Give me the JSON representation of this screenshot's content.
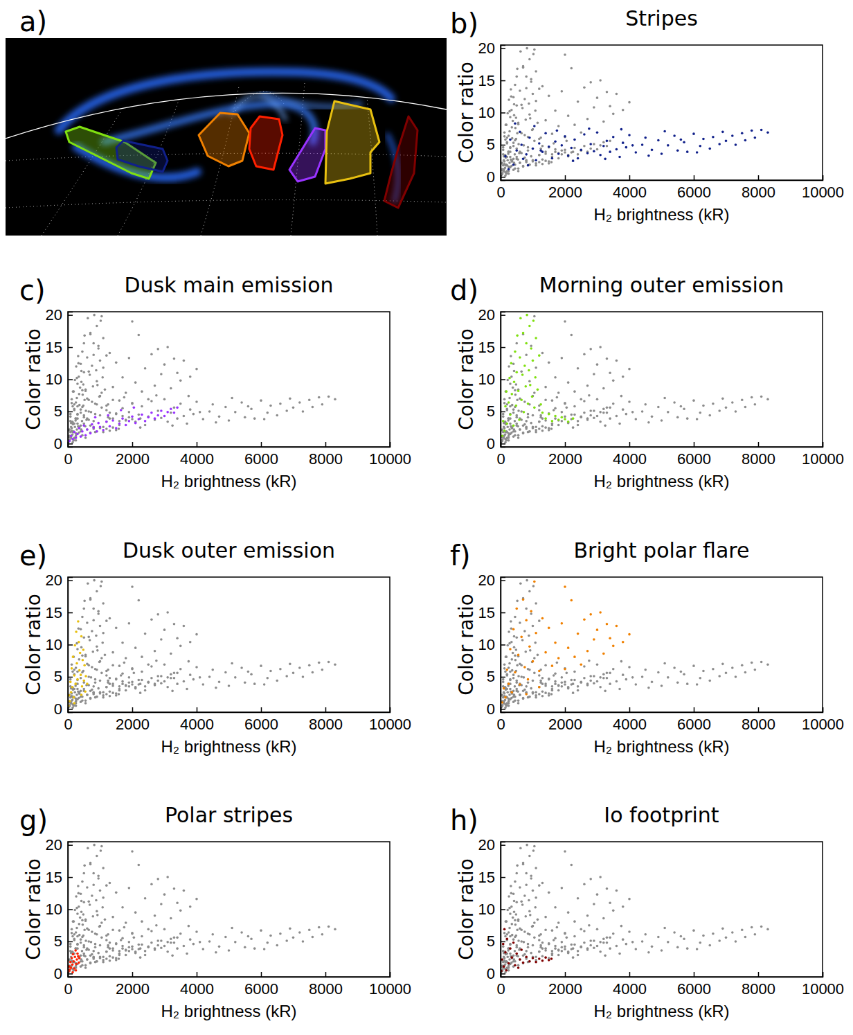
{
  "image_panel": {
    "panel_label": "a)"
  },
  "chart_data": [
    {
      "type": "scatter",
      "panel_label": "b)",
      "title": "Stripes",
      "xlabel": "H₂ brightness (kR)",
      "ylabel": "Color ratio",
      "xlim": [
        0,
        10000
      ],
      "ylim": [
        -0.5,
        20.5
      ],
      "xticks": [
        0,
        2000,
        4000,
        6000,
        8000,
        10000
      ],
      "yticks": [
        0,
        5,
        10,
        15,
        20
      ],
      "marker": "circle",
      "series": [
        {
          "color": "#10208a",
          "x": [
            150,
            300,
            400,
            500,
            600,
            700,
            800,
            900,
            1000,
            1100,
            1200,
            1300,
            1400,
            1500,
            1600,
            1700,
            1800,
            1900,
            2000,
            2100,
            2200,
            2300,
            2400,
            2500,
            2600,
            2700,
            2800,
            2900,
            3000,
            3100,
            3200,
            3300,
            3400,
            3500,
            3600,
            3700,
            3800,
            3900,
            4000,
            4200,
            4400,
            4500,
            4700,
            4900,
            5000,
            5200,
            5400,
            5500,
            5700,
            5800,
            6000,
            6200,
            6300,
            6500,
            6600,
            6800,
            6900,
            7000,
            7200,
            7300,
            7500,
            7600,
            7800,
            7900,
            8100,
            8300,
            250,
            450,
            650,
            850,
            1050,
            1250,
            1750,
            2250,
            2750,
            3250,
            3750,
            4100,
            4600,
            5100,
            5600,
            6100
          ],
          "values": [
            3.2,
            5.8,
            1.9,
            4.1,
            7.0,
            2.8,
            3.5,
            6.1,
            4.4,
            2.6,
            5.2,
            3.9,
            6.8,
            4.7,
            2.9,
            5.5,
            3.6,
            4.9,
            6.3,
            3.3,
            4.5,
            5.8,
            2.9,
            4.2,
            6.6,
            3.7,
            5.1,
            4.0,
            6.9,
            3.4,
            4.8,
            5.6,
            3.9,
            6.2,
            4.3,
            3.1,
            5.3,
            4.6,
            6.5,
            3.8,
            5.0,
            6.1,
            4.2,
            5.7,
            3.6,
            4.9,
            6.4,
            4.1,
            5.4,
            3.9,
            6.7,
            4.8,
            5.9,
            4.4,
            6.2,
            5.1,
            7.0,
            5.6,
            6.4,
            5.0,
            6.8,
            5.7,
            7.2,
            6.1,
            7.3,
            6.9,
            1.2,
            8.3,
            5.0,
            1.8,
            7.9,
            4.1,
            7.2,
            2.5,
            7.5,
            2.8,
            7.4,
            4.9,
            3.3,
            7.1,
            5.8,
            3.8
          ]
        }
      ]
    },
    {
      "type": "scatter",
      "panel_label": "c)",
      "title": "Dusk main emission",
      "xlabel": "H₂ brightness (kR)",
      "ylabel": "Color ratio",
      "xlim": [
        0,
        10000
      ],
      "ylim": [
        -0.5,
        20.5
      ],
      "xticks": [
        0,
        2000,
        4000,
        6000,
        8000,
        10000
      ],
      "yticks": [
        0,
        5,
        10,
        15,
        20
      ],
      "marker": "circle",
      "series": [
        {
          "color": "#9933ff",
          "x": [
            50,
            100,
            150,
            200,
            250,
            300,
            350,
            400,
            450,
            500,
            550,
            600,
            700,
            750,
            800,
            900,
            950,
            1000,
            1100,
            1200,
            1300,
            1400,
            1500,
            1600,
            1700,
            1800,
            1900,
            2000,
            2100,
            2200,
            2300,
            2400,
            2500,
            2600,
            2700,
            2800,
            2900,
            3000,
            3100,
            3200,
            3300,
            3400,
            1250,
            850,
            1650,
            2050
          ],
          "values": [
            0.4,
            1.2,
            0.7,
            1.8,
            0.9,
            1.5,
            2.4,
            1.1,
            1.9,
            2.8,
            1.3,
            2.2,
            1.6,
            3.0,
            2.5,
            1.9,
            3.2,
            2.6,
            2.1,
            3.4,
            2.7,
            3.6,
            2.4,
            3.1,
            3.9,
            2.9,
            3.5,
            4.2,
            3.2,
            3.8,
            4.5,
            3.5,
            4.1,
            4.8,
            3.9,
            4.4,
            5.1,
            4.3,
            4.9,
            5.4,
            4.8,
            5.6,
            4.4,
            4.1,
            5.2,
            5.6
          ]
        }
      ]
    },
    {
      "type": "scatter",
      "panel_label": "d)",
      "title": "Morning outer emission",
      "xlabel": "H₂ brightness (kR)",
      "ylabel": "Color ratio",
      "xlim": [
        0,
        10000
      ],
      "ylim": [
        -0.5,
        20.5
      ],
      "xticks": [
        0,
        2000,
        4000,
        6000,
        8000,
        10000
      ],
      "yticks": [
        0,
        5,
        10,
        15,
        20
      ],
      "marker": "circle",
      "series": [
        {
          "color": "#80e010",
          "x": [
            50,
            80,
            120,
            150,
            180,
            200,
            250,
            280,
            300,
            330,
            350,
            400,
            420,
            450,
            480,
            500,
            520,
            550,
            580,
            600,
            620,
            650,
            680,
            700,
            720,
            750,
            780,
            800,
            820,
            850,
            880,
            900,
            920,
            950,
            980,
            1000,
            1020,
            1050,
            1080,
            1100,
            1150,
            1200,
            1250,
            1300,
            1400,
            1500,
            1600,
            1700,
            1800,
            1900,
            2000,
            2100,
            2250
          ],
          "values": [
            1.2,
            3.5,
            2.0,
            5.8,
            8.1,
            3.1,
            6.4,
            10.2,
            4.5,
            12.5,
            7.7,
            2.8,
            9.6,
            14.3,
            5.9,
            11.1,
            16.8,
            8.2,
            3.7,
            13.4,
            19.5,
            6.8,
            10.7,
            17.2,
            4.9,
            12.1,
            8.9,
            15.6,
            20.0,
            6.2,
            11.4,
            18.3,
            9.1,
            14.8,
            7.3,
            12.9,
            19.1,
            5.6,
            10.3,
            16.4,
            8.4,
            13.7,
            6.1,
            4.8,
            3.9,
            4.6,
            3.5,
            4.3,
            3.7,
            4.1,
            3.8,
            3.4,
            3.9
          ]
        }
      ]
    },
    {
      "type": "scatter",
      "panel_label": "e)",
      "title": "Dusk outer emission",
      "xlabel": "H₂ brightness (kR)",
      "ylabel": "Color ratio",
      "xlim": [
        0,
        10000
      ],
      "ylim": [
        -0.5,
        20.5
      ],
      "xticks": [
        0,
        2000,
        4000,
        6000,
        8000,
        10000
      ],
      "yticks": [
        0,
        5,
        10,
        15,
        20
      ],
      "marker": "circle",
      "series": [
        {
          "color": "#e8c010",
          "x": [
            20,
            40,
            60,
            80,
            100,
            120,
            140,
            160,
            180,
            200,
            220,
            240,
            260,
            280,
            300,
            320,
            340,
            360,
            380,
            400,
            420,
            440,
            460,
            480,
            500,
            520,
            540,
            560,
            600,
            420,
            200
          ],
          "values": [
            0.5,
            2.1,
            1.2,
            4.2,
            2.6,
            6.3,
            3.4,
            8.1,
            1.8,
            5.2,
            9.9,
            3.9,
            12.0,
            7.1,
            4.6,
            13.6,
            10.4,
            6.0,
            8.7,
            5.3,
            11.3,
            3.5,
            7.6,
            9.2,
            4.4,
            6.8,
            2.7,
            5.1,
            3.9,
            2.2,
            0.9
          ]
        }
      ]
    },
    {
      "type": "scatter",
      "panel_label": "f)",
      "title": "Bright polar flare",
      "xlabel": "H₂ brightness (kR)",
      "ylabel": "Color ratio",
      "xlim": [
        0,
        10000
      ],
      "ylim": [
        -0.5,
        20.5
      ],
      "xticks": [
        0,
        2000,
        4000,
        6000,
        8000,
        10000
      ],
      "yticks": [
        0,
        5,
        10,
        15,
        20
      ],
      "marker": "circle",
      "series": [
        {
          "color": "#f08000",
          "x": [
            50,
            100,
            150,
            200,
            250,
            300,
            350,
            400,
            450,
            500,
            550,
            600,
            650,
            700,
            750,
            800,
            850,
            900,
            950,
            1000,
            1100,
            1200,
            1300,
            1400,
            1500,
            1600,
            1700,
            1800,
            1900,
            2000,
            2100,
            2200,
            2300,
            2400,
            2500,
            2600,
            2700,
            2800,
            2900,
            3000,
            3100,
            3200,
            3300,
            3400,
            3500,
            3600,
            3800,
            4000,
            2000,
            1050,
            800,
            1200
          ],
          "values": [
            1.0,
            3.2,
            1.8,
            6.1,
            3.9,
            9.3,
            2.6,
            12.4,
            5.7,
            15.6,
            8.4,
            3.8,
            11.2,
            17.0,
            6.5,
            13.8,
            4.6,
            9.7,
            15.2,
            7.4,
            11.8,
            5.9,
            14.1,
            8.8,
            12.6,
            6.7,
            10.3,
            7.9,
            13.3,
            6.2,
            9.5,
            16.9,
            8.1,
            11.7,
            6.9,
            13.9,
            9.0,
            14.7,
            10.8,
            12.3,
            15.0,
            8.6,
            13.2,
            11.0,
            9.8,
            12.9,
            10.4,
            11.6,
            19.0,
            19.8,
            2.3,
            3.4
          ]
        }
      ]
    },
    {
      "type": "scatter",
      "panel_label": "g)",
      "title": "Polar stripes",
      "xlabel": "H₂ brightness (kR)",
      "ylabel": "Color ratio",
      "xlim": [
        0,
        10000
      ],
      "ylim": [
        -0.5,
        20.5
      ],
      "xticks": [
        0,
        2000,
        4000,
        6000,
        8000,
        10000
      ],
      "yticks": [
        0,
        5,
        10,
        15,
        20
      ],
      "marker": "circle",
      "series": [
        {
          "color": "#ff2000",
          "x": [
            20,
            40,
            60,
            80,
            100,
            120,
            140,
            160,
            180,
            200,
            220,
            240,
            260,
            280,
            300,
            320,
            340,
            360,
            150,
            250
          ],
          "values": [
            0.3,
            1.1,
            0.6,
            1.8,
            0.9,
            2.4,
            1.4,
            3.0,
            1.9,
            0.8,
            2.6,
            3.6,
            1.5,
            2.2,
            3.1,
            2.7,
            1.7,
            2.4,
            0.2,
            0.5
          ]
        }
      ]
    },
    {
      "type": "scatter",
      "panel_label": "h)",
      "title": "Io footprint",
      "xlabel": "H₂ brightness (kR)",
      "ylabel": "Color ratio",
      "xlim": [
        0,
        10000
      ],
      "ylim": [
        -0.5,
        20.5
      ],
      "xticks": [
        0,
        2000,
        4000,
        6000,
        8000,
        10000
      ],
      "yticks": [
        0,
        5,
        10,
        15,
        20
      ],
      "marker": "circle",
      "series": [
        {
          "color": "#800000",
          "x": [
            20,
            50,
            80,
            100,
            120,
            150,
            200,
            250,
            300,
            350,
            400,
            450,
            500,
            600,
            650,
            700,
            800,
            900,
            1000,
            1100,
            1200,
            1300,
            1400,
            1500,
            1580,
            180,
            550
          ],
          "values": [
            0.4,
            2.2,
            4.6,
            1.1,
            6.9,
            3.3,
            5.4,
            1.6,
            3.9,
            2.5,
            4.8,
            1.3,
            3.1,
            2.2,
            3.7,
            1.7,
            2.6,
            1.9,
            2.4,
            1.8,
            2.3,
            2.0,
            2.5,
            2.1,
            2.3,
            0.5,
            0.9
          ]
        }
      ]
    }
  ]
}
